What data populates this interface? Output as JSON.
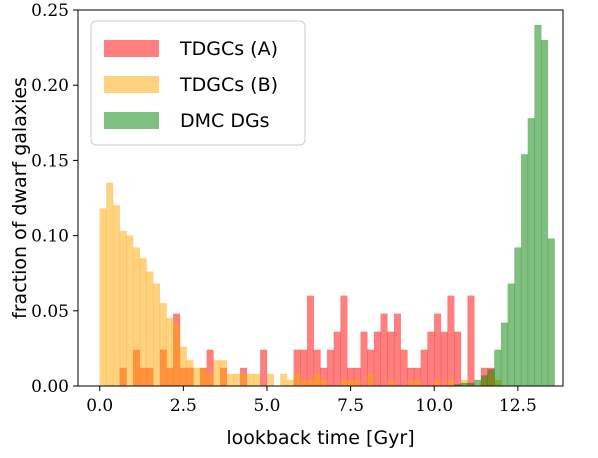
{
  "chart_data": {
    "type": "bar",
    "xlabel": "lookback time [Gyr]",
    "ylabel": "fraction of dwarf galaxies",
    "xlim": [
      -0.65,
      13.85
    ],
    "ylim": [
      0,
      0.25
    ],
    "xticks": [
      "0.0",
      "2.5",
      "5.0",
      "7.5",
      "10.0",
      "12.5"
    ],
    "xtick_values": [
      0,
      2.5,
      5,
      7.5,
      10,
      12.5
    ],
    "yticks": [
      "0.00",
      "0.05",
      "0.10",
      "0.15",
      "0.20",
      "0.25"
    ],
    "ytick_values": [
      0,
      0.05,
      0.1,
      0.15,
      0.2,
      0.25
    ],
    "bin_width": 0.2,
    "legend_position": "top-left",
    "series": [
      {
        "name": "TDGCs (A)",
        "color": "#ff0000",
        "opacity": 0.5,
        "bins": [
          [
            0.6,
            0.012
          ],
          [
            1.0,
            0.024
          ],
          [
            1.2,
            0.012
          ],
          [
            1.4,
            0.012
          ],
          [
            1.8,
            0.024
          ],
          [
            2.0,
            0.012
          ],
          [
            2.2,
            0.048
          ],
          [
            2.4,
            0.012
          ],
          [
            2.6,
            0.012
          ],
          [
            3.0,
            0.012
          ],
          [
            3.2,
            0.024
          ],
          [
            3.6,
            0.012
          ],
          [
            4.2,
            0.012
          ],
          [
            4.8,
            0.024
          ],
          [
            5.8,
            0.024
          ],
          [
            6.0,
            0.024
          ],
          [
            6.2,
            0.06
          ],
          [
            6.4,
            0.024
          ],
          [
            6.6,
            0.012
          ],
          [
            6.8,
            0.024
          ],
          [
            7.0,
            0.036
          ],
          [
            7.2,
            0.06
          ],
          [
            7.4,
            0.012
          ],
          [
            7.6,
            0.012
          ],
          [
            7.8,
            0.036
          ],
          [
            8.0,
            0.024
          ],
          [
            8.2,
            0.036
          ],
          [
            8.4,
            0.048
          ],
          [
            8.6,
            0.036
          ],
          [
            8.8,
            0.048
          ],
          [
            9.0,
            0.024
          ],
          [
            9.2,
            0.012
          ],
          [
            9.4,
            0.012
          ],
          [
            9.6,
            0.024
          ],
          [
            9.8,
            0.036
          ],
          [
            10.0,
            0.048
          ],
          [
            10.2,
            0.036
          ],
          [
            10.4,
            0.06
          ],
          [
            10.6,
            0.036
          ],
          [
            11.0,
            0.06
          ],
          [
            11.4,
            0.012
          ],
          [
            11.6,
            0.012
          ]
        ]
      },
      {
        "name": "TDGCs (B)",
        "color": "#ffa500",
        "opacity": 0.5,
        "bins": [
          [
            0.0,
            0.118
          ],
          [
            0.2,
            0.135
          ],
          [
            0.4,
            0.12
          ],
          [
            0.6,
            0.103
          ],
          [
            0.8,
            0.1
          ],
          [
            1.0,
            0.092
          ],
          [
            1.2,
            0.085
          ],
          [
            1.4,
            0.076
          ],
          [
            1.6,
            0.068
          ],
          [
            1.8,
            0.055
          ],
          [
            2.0,
            0.045
          ],
          [
            2.2,
            0.041
          ],
          [
            2.4,
            0.026
          ],
          [
            2.6,
            0.017
          ],
          [
            2.8,
            0.012
          ],
          [
            3.0,
            0.012
          ],
          [
            3.2,
            0.008
          ],
          [
            3.4,
            0.017
          ],
          [
            3.6,
            0.017
          ],
          [
            3.8,
            0.008
          ],
          [
            4.0,
            0.008
          ],
          [
            4.2,
            0.008
          ],
          [
            4.4,
            0.008
          ],
          [
            4.6,
            0.008
          ],
          [
            5.0,
            0.008
          ],
          [
            5.4,
            0.008
          ],
          [
            5.6,
            0.004
          ],
          [
            5.8,
            0.008
          ],
          [
            6.0,
            0.004
          ],
          [
            6.2,
            0.004
          ],
          [
            6.4,
            0.008
          ],
          [
            6.6,
            0.004
          ],
          [
            7.2,
            0.004
          ],
          [
            7.4,
            0.004
          ],
          [
            7.6,
            0.004
          ],
          [
            8.0,
            0.008
          ],
          [
            8.6,
            0.004
          ],
          [
            9.2,
            0.004
          ],
          [
            9.4,
            0.004
          ],
          [
            10.0,
            0.004
          ],
          [
            10.4,
            0.004
          ],
          [
            10.8,
            0.004
          ],
          [
            11.4,
            0.004
          ],
          [
            11.6,
            0.008
          ],
          [
            11.8,
            0.004
          ]
        ]
      },
      {
        "name": "DMC DGs",
        "color": "#008000",
        "opacity": 0.5,
        "bins": [
          [
            10.6,
            0.001
          ],
          [
            10.8,
            0.002
          ],
          [
            11.0,
            0.002
          ],
          [
            11.2,
            0.004
          ],
          [
            11.4,
            0.007
          ],
          [
            11.6,
            0.011
          ],
          [
            11.8,
            0.024
          ],
          [
            12.0,
            0.042
          ],
          [
            12.2,
            0.068
          ],
          [
            12.4,
            0.092
          ],
          [
            12.6,
            0.154
          ],
          [
            12.8,
            0.178
          ],
          [
            13.0,
            0.24
          ],
          [
            13.2,
            0.23
          ],
          [
            13.4,
            0.098
          ]
        ]
      }
    ]
  }
}
